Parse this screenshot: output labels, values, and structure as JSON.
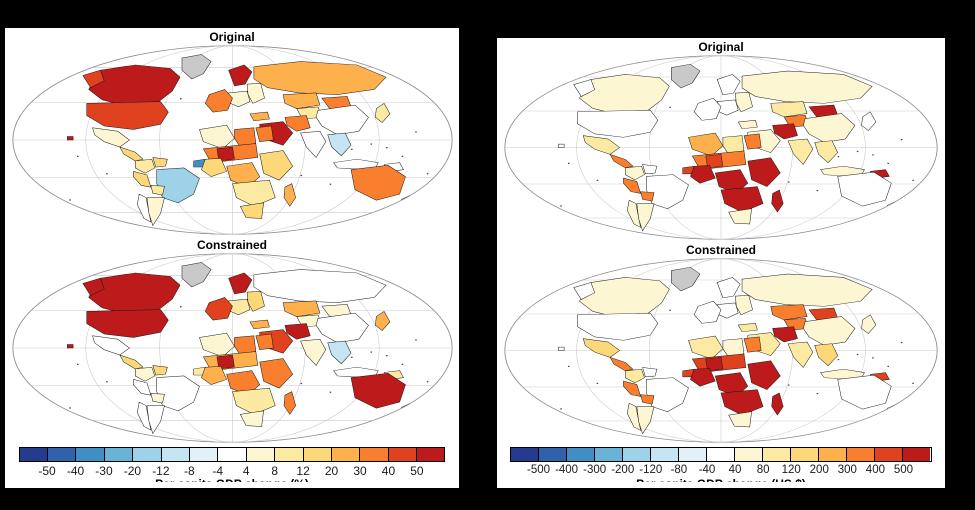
{
  "figure": {
    "background": "#000000",
    "panel_background": "#ffffff"
  },
  "chart_data": {
    "type": "choropleth",
    "projection": "Mollweide",
    "palette": [
      "#253c8e",
      "#2f62ab",
      "#3f8ec4",
      "#69b2d8",
      "#9ed2e8",
      "#c6e5f2",
      "#e2f1f8",
      "#ffffff",
      "#fdf6d2",
      "#fdeaa2",
      "#fdd878",
      "#fdb04c",
      "#f97e2d",
      "#e0411f",
      "#bd1a1c"
    ],
    "no_data_color": "#c9c9c9",
    "no_data_regions": [
      "greenland"
    ],
    "panels": [
      {
        "id": "percent",
        "xlabel": "Per capita GDP change (%)",
        "xlabel_note_visible": "text mostly cut off at panel edge",
        "colorbar_tick_labels": [
          "-50",
          "-40",
          "-30",
          "-20",
          "-12",
          "-8",
          "-4",
          "4",
          "8",
          "12",
          "20",
          "30",
          "40",
          "50"
        ],
        "bin_labels": [
          "< -50",
          "-50 to -40",
          "-40 to -30",
          "-30 to -20",
          "-20 to -12",
          "-12 to -8",
          "-8 to -4",
          "-4 to 4",
          "4 to 8",
          "8 to 12",
          "12 to 20",
          "20 to 30",
          "30 to 40",
          "40 to 50",
          "> 50"
        ],
        "maps": [
          {
            "title": "Original",
            "region_bins": {
              "russia": 11,
              "canada": 14,
              "alaska": 13,
              "usa": 13,
              "greenland": "nd",
              "mexico": 8,
              "camerica": 10,
              "colombia": 9,
              "venezuela": 10,
              "brazil": 4,
              "peru": 10,
              "bolivia": 9,
              "chile": 7,
              "argentina": 8,
              "scandinavia": 14,
              "eeurope": 8,
              "ceurope": 8,
              "weurope": 12,
              "kazakh": 11,
              "casia": 9,
              "mongolia": 12,
              "china": 7,
              "japan": 9,
              "india": 7,
              "seasia": 5,
              "indonesia": 7,
              "png": 7,
              "australia": 12,
              "newzealand": 12,
              "turkey": 11,
              "iran": 12,
              "mideast": 14,
              "nafrica_w": 8,
              "libya": 12,
              "egypt": 12,
              "sahel": 12,
              "sahel_accent": 14,
              "guinea": 2,
              "wafrica": 10,
              "cafrica": 11,
              "eafrica": 10,
              "safrica_band": 9,
              "southafrica": 10,
              "madagascar": 11,
              "hawaii": 14
            }
          },
          {
            "title": "Constrained",
            "region_bins": {
              "russia": 7,
              "canada": 14,
              "alaska": 14,
              "usa": 14,
              "greenland": "nd",
              "mexico": 7,
              "camerica": 10,
              "colombia": 8,
              "venezuela": 10,
              "brazil": 7,
              "peru": 7,
              "bolivia": 8,
              "chile": 7,
              "argentina": 7,
              "scandinavia": 14,
              "eeurope": 10,
              "ceurope": 9,
              "weurope": 13,
              "kazakh": 11,
              "casia": 8,
              "mongolia": 8,
              "china": 7,
              "japan": 11,
              "india": 8,
              "seasia": 5,
              "indonesia": 7,
              "png": 9,
              "australia": 14,
              "newzealand": 12,
              "turkey": 11,
              "iran": 14,
              "mideast": 13,
              "nafrica_w": 8,
              "libya": 12,
              "egypt": 12,
              "sahel": 11,
              "sahel_accent": 14,
              "guinea": 9,
              "wafrica": 11,
              "cafrica": 12,
              "eafrica": 12,
              "safrica_band": 9,
              "southafrica": 8,
              "madagascar": 12,
              "hawaii": 14
            }
          }
        ]
      },
      {
        "id": "dollars",
        "xlabel": "Per capita GDP change (US $)",
        "xlabel_note_visible": "text mostly cut off at panel edge",
        "colorbar_tick_labels": [
          "-500",
          "-400",
          "-300",
          "-200",
          "-120",
          "-80",
          "-40",
          "40",
          "80",
          "120",
          "200",
          "300",
          "400",
          "500"
        ],
        "bin_labels": [
          "< -500",
          "-500 to -400",
          "-400 to -300",
          "-300 to -200",
          "-200 to -120",
          "-120 to -80",
          "-80 to -40",
          "-40 to 40",
          "40 to 80",
          "80 to 120",
          "120 to 200",
          "200 to 300",
          "300 to 400",
          "400 to 500",
          "> 500"
        ],
        "maps": [
          {
            "title": "Original",
            "region_bins": {
              "russia": 8,
              "canada": 8,
              "alaska": 7,
              "usa": 7,
              "greenland": "nd",
              "mexico": 9,
              "camerica": 12,
              "colombia": 8,
              "venezuela": 7,
              "brazil": 7,
              "peru": 12,
              "bolivia": 12,
              "chile": 8,
              "argentina": 8,
              "scandinavia": 7,
              "eeurope": 8,
              "ceurope": 7,
              "weurope": 7,
              "kazakh": 9,
              "casia": 12,
              "mongolia": 14,
              "china": 8,
              "japan": 7,
              "india": 9,
              "seasia": 9,
              "indonesia": 8,
              "png": 14,
              "australia": 7,
              "newzealand": 7,
              "turkey": 8,
              "iran": 14,
              "mideast": 8,
              "nafrica_w": 11,
              "libya": 9,
              "egypt": 12,
              "sahel": 12,
              "sahel_accent": 13,
              "guinea": 13,
              "wafrica": 14,
              "cafrica": 14,
              "eafrica": 14,
              "safrica_band": 14,
              "southafrica": 8,
              "madagascar": 14,
              "hawaii": 7
            }
          },
          {
            "title": "Constrained",
            "region_bins": {
              "russia": 8,
              "canada": 8,
              "alaska": 7,
              "usa": 7,
              "greenland": "nd",
              "mexico": 10,
              "camerica": 12,
              "colombia": 9,
              "venezuela": 7,
              "brazil": 7,
              "peru": 12,
              "bolivia": 12,
              "chile": 8,
              "argentina": 8,
              "scandinavia": 7,
              "eeurope": 8,
              "ceurope": 7,
              "weurope": 7,
              "kazakh": 12,
              "casia": 12,
              "mongolia": 13,
              "china": 8,
              "japan": 8,
              "india": 9,
              "seasia": 10,
              "indonesia": 8,
              "png": 13,
              "australia": 7,
              "newzealand": 7,
              "turkey": 9,
              "iran": 14,
              "mideast": 9,
              "nafrica_w": 9,
              "libya": 8,
              "egypt": 12,
              "sahel": 13,
              "sahel_accent": 14,
              "guinea": 13,
              "wafrica": 14,
              "cafrica": 14,
              "eafrica": 14,
              "safrica_band": 14,
              "southafrica": 8,
              "madagascar": 14,
              "hawaii": 7
            }
          }
        ]
      }
    ]
  }
}
